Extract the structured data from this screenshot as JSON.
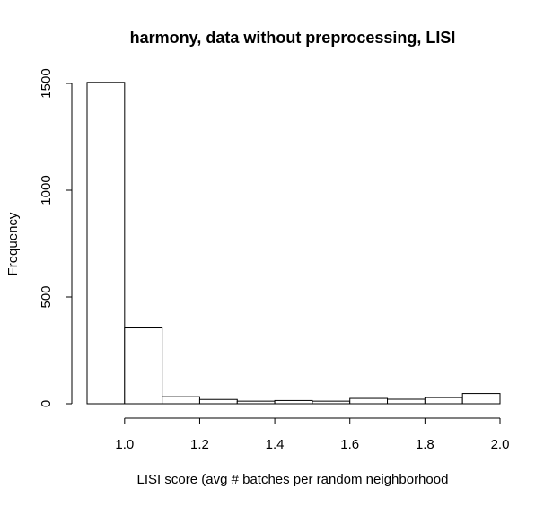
{
  "chart_data": {
    "type": "bar",
    "title": "harmony, data without preprocessing, LISI",
    "xlabel": "LISI score (avg # batches per random neighborhood",
    "ylabel": "Frequency",
    "xlim": [
      0.9,
      2.0
    ],
    "ylim": [
      0,
      1500
    ],
    "x_ticks": [
      "1.0",
      "1.2",
      "1.4",
      "1.6",
      "1.8",
      "2.0"
    ],
    "y_ticks": [
      "0",
      "500",
      "1000",
      "1500"
    ],
    "grid": false,
    "legend": "none",
    "bins": [
      {
        "start": 0.9,
        "end": 1.0,
        "value": 1505
      },
      {
        "start": 1.0,
        "end": 1.1,
        "value": 355
      },
      {
        "start": 1.1,
        "end": 1.2,
        "value": 33
      },
      {
        "start": 1.2,
        "end": 1.3,
        "value": 20
      },
      {
        "start": 1.3,
        "end": 1.4,
        "value": 12
      },
      {
        "start": 1.4,
        "end": 1.5,
        "value": 15
      },
      {
        "start": 1.5,
        "end": 1.6,
        "value": 12
      },
      {
        "start": 1.6,
        "end": 1.7,
        "value": 25
      },
      {
        "start": 1.7,
        "end": 1.8,
        "value": 21
      },
      {
        "start": 1.8,
        "end": 1.9,
        "value": 29
      },
      {
        "start": 1.9,
        "end": 2.0,
        "value": 48
      }
    ],
    "colors": {
      "bar_fill": "#ffffff",
      "bar_stroke": "#000000",
      "axis": "#000000",
      "text": "#000000"
    }
  }
}
